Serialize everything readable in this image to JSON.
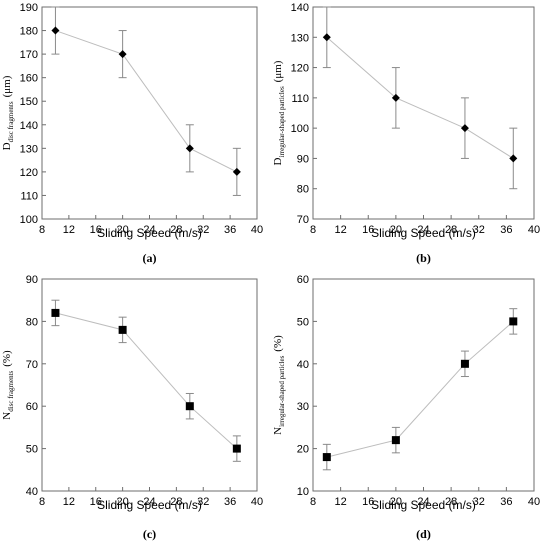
{
  "chart_data": [
    {
      "id": "a",
      "type": "scatter",
      "marker": "diamond",
      "panel_label": "(a)",
      "xlabel": "Sliding Speed (m/s)",
      "ylabel_main": "D",
      "ylabel_sub": "disc fragments",
      "ylabel_unit": "(μm)",
      "xlim": [
        8,
        40
      ],
      "xticks": [
        8,
        12,
        16,
        20,
        24,
        28,
        32,
        36,
        40
      ],
      "ylim": [
        100,
        190
      ],
      "yticks": [
        100,
        110,
        120,
        130,
        140,
        150,
        160,
        170,
        180,
        190
      ],
      "x": [
        10,
        20,
        30,
        37
      ],
      "y": [
        180,
        170,
        130,
        120
      ],
      "err": [
        10,
        10,
        10,
        10
      ]
    },
    {
      "id": "b",
      "type": "scatter",
      "marker": "diamond",
      "panel_label": "(b)",
      "xlabel": "Sliding Speed (m/s)",
      "ylabel_main": "D",
      "ylabel_sub": "irregular-shaped particles",
      "ylabel_unit": "(μm)",
      "xlim": [
        8,
        40
      ],
      "xticks": [
        8,
        12,
        16,
        20,
        24,
        28,
        32,
        36,
        40
      ],
      "ylim": [
        70,
        140
      ],
      "yticks": [
        70,
        80,
        90,
        100,
        110,
        120,
        130,
        140
      ],
      "x": [
        10,
        20,
        30,
        37
      ],
      "y": [
        130,
        110,
        100,
        90
      ],
      "err": [
        10,
        10,
        10,
        10
      ]
    },
    {
      "id": "c",
      "type": "scatter",
      "marker": "square",
      "panel_label": "(c)",
      "xlabel": "Sliding Speed (m/s)",
      "ylabel_main": "N",
      "ylabel_sub": "disc fragments",
      "ylabel_unit": "(%)",
      "xlim": [
        8,
        40
      ],
      "xticks": [
        8,
        12,
        16,
        20,
        24,
        28,
        32,
        36,
        40
      ],
      "ylim": [
        40,
        90
      ],
      "yticks": [
        40,
        50,
        60,
        70,
        80,
        90
      ],
      "x": [
        10,
        20,
        30,
        37
      ],
      "y": [
        82,
        78,
        60,
        50
      ],
      "err": [
        3,
        3,
        3,
        3
      ]
    },
    {
      "id": "d",
      "type": "scatter",
      "marker": "square",
      "panel_label": "(d)",
      "xlabel": "Sliding Speed (m/s)",
      "ylabel_main": "N",
      "ylabel_sub": "irregular-shaped particles",
      "ylabel_unit": "(%)",
      "xlim": [
        8,
        40
      ],
      "xticks": [
        8,
        12,
        16,
        20,
        24,
        28,
        32,
        36,
        40
      ],
      "ylim": [
        10,
        60
      ],
      "yticks": [
        10,
        20,
        30,
        40,
        50,
        60
      ],
      "x": [
        10,
        20,
        30,
        37
      ],
      "y": [
        18,
        22,
        40,
        50
      ],
      "err": [
        3,
        3,
        3,
        3
      ]
    }
  ]
}
